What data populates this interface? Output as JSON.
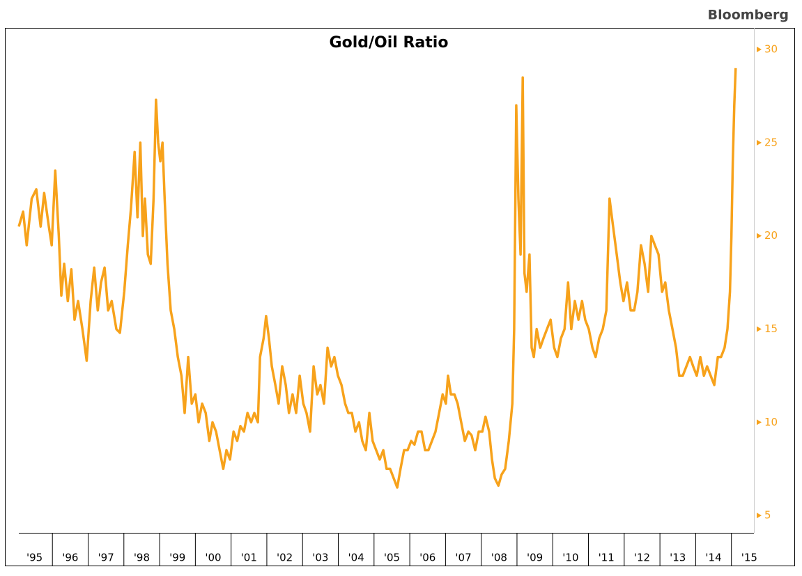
{
  "chart_data": {
    "type": "line",
    "title": "Gold/Oil Ratio",
    "source": "Bloomberg",
    "x": [
      1995.06,
      1995.18,
      1995.28,
      1995.42,
      1995.55,
      1995.67,
      1995.77,
      1995.9,
      1995.98,
      1996.08,
      1996.18,
      1996.25,
      1996.33,
      1996.43,
      1996.53,
      1996.62,
      1996.72,
      1996.84,
      1996.96,
      1997.07,
      1997.17,
      1997.27,
      1997.36,
      1997.46,
      1997.56,
      1997.66,
      1997.79,
      1997.89,
      1998.01,
      1998.11,
      1998.2,
      1998.3,
      1998.38,
      1998.46,
      1998.53,
      1998.59,
      1998.67,
      1998.75,
      1998.83,
      1998.9,
      1998.96,
      1999.02,
      1999.08,
      1999.14,
      1999.22,
      1999.31,
      1999.41,
      1999.51,
      1999.61,
      1999.7,
      1999.8,
      1999.9,
      2000.0,
      2000.09,
      2000.19,
      2000.29,
      2000.39,
      2000.48,
      2000.58,
      2000.68,
      2000.78,
      2000.87,
      2000.97,
      2001.07,
      2001.17,
      2001.26,
      2001.36,
      2001.46,
      2001.56,
      2001.65,
      2001.75,
      2001.81,
      2001.91,
      2001.98,
      2002.06,
      2002.14,
      2002.24,
      2002.33,
      2002.43,
      2002.53,
      2002.62,
      2002.72,
      2002.82,
      2002.92,
      2003.02,
      2003.11,
      2003.21,
      2003.31,
      2003.41,
      2003.5,
      2003.6,
      2003.7,
      2003.8,
      2003.89,
      2003.99,
      2004.09,
      2004.19,
      2004.28,
      2004.38,
      2004.48,
      2004.58,
      2004.67,
      2004.77,
      2004.87,
      2004.96,
      2005.06,
      2005.16,
      2005.26,
      2005.35,
      2005.45,
      2005.55,
      2005.65,
      2005.74,
      2005.84,
      2005.94,
      2006.04,
      2006.13,
      2006.23,
      2006.33,
      2006.43,
      2006.52,
      2006.62,
      2006.72,
      2006.82,
      2006.92,
      2007.01,
      2007.07,
      2007.15,
      2007.25,
      2007.34,
      2007.44,
      2007.54,
      2007.64,
      2007.73,
      2007.83,
      2007.93,
      2008.03,
      2008.12,
      2008.22,
      2008.3,
      2008.38,
      2008.48,
      2008.57,
      2008.67,
      2008.77,
      2008.87,
      2008.92,
      2008.98,
      2009.04,
      2009.1,
      2009.16,
      2009.21,
      2009.27,
      2009.35,
      2009.41,
      2009.47,
      2009.55,
      2009.65,
      2009.74,
      2009.84,
      2009.94,
      2010.04,
      2010.13,
      2010.23,
      2010.33,
      2010.43,
      2010.52,
      2010.62,
      2010.72,
      2010.82,
      2010.91,
      2011.01,
      2011.11,
      2011.2,
      2011.3,
      2011.4,
      2011.5,
      2011.59,
      2011.69,
      2011.79,
      2011.89,
      2011.98,
      2012.08,
      2012.18,
      2012.28,
      2012.37,
      2012.47,
      2012.57,
      2012.67,
      2012.76,
      2012.86,
      2012.96,
      2013.06,
      2013.15,
      2013.25,
      2013.35,
      2013.45,
      2013.54,
      2013.64,
      2013.74,
      2013.84,
      2013.93,
      2014.03,
      2014.13,
      2014.23,
      2014.32,
      2014.42,
      2014.52,
      2014.62,
      2014.71,
      2014.81,
      2014.89,
      2014.96,
      2015.0,
      2015.04,
      2015.08,
      2015.12
    ],
    "series": [
      {
        "color": "#f7a21b",
        "values": [
          20.5,
          21.3,
          19.5,
          22,
          22.5,
          20.5,
          22.3,
          20.5,
          19.5,
          23.5,
          20,
          16.8,
          18.5,
          16.5,
          18.2,
          15.5,
          16.5,
          15,
          13.3,
          16.5,
          18.3,
          16,
          17.5,
          18.3,
          16,
          16.5,
          15,
          14.8,
          17,
          19.5,
          21.5,
          24.5,
          21,
          25,
          20,
          22,
          19,
          18.5,
          22,
          27.3,
          25,
          24,
          25,
          22,
          18.5,
          16,
          15,
          13.5,
          12.5,
          10.5,
          13.5,
          11,
          11.5,
          10,
          11,
          10.5,
          9,
          10,
          9.5,
          8.5,
          7.5,
          8.5,
          8,
          9.5,
          9,
          9.8,
          9.5,
          10.5,
          10,
          10.5,
          10,
          13.5,
          14.5,
          15.7,
          14.5,
          13,
          12,
          11,
          13,
          12,
          10.5,
          11.5,
          10.5,
          12.5,
          11,
          10.5,
          9.5,
          13,
          11.5,
          12,
          11,
          14,
          13,
          13.5,
          12.5,
          12,
          11,
          10.5,
          10.5,
          9.5,
          10,
          9,
          8.5,
          10.5,
          9,
          8.5,
          8,
          8.5,
          7.5,
          7.5,
          7,
          6.5,
          7.5,
          8.5,
          8.5,
          9,
          8.8,
          9.5,
          9.5,
          8.5,
          8.5,
          9,
          9.5,
          10.5,
          11.5,
          11,
          12.5,
          11.5,
          11.5,
          11,
          10,
          9,
          9.5,
          9.3,
          8.5,
          9.5,
          9.5,
          10.3,
          9.5,
          8,
          7,
          6.6,
          7.2,
          7.5,
          9,
          11,
          15,
          27,
          22,
          19,
          28.5,
          18,
          17,
          19,
          14,
          13.5,
          15,
          14,
          14.5,
          15,
          15.5,
          14,
          13.5,
          14.5,
          15,
          17.5,
          15,
          16.5,
          15.5,
          16.5,
          15.5,
          15,
          14,
          13.5,
          14.5,
          15,
          16,
          22,
          20.5,
          19,
          17.5,
          16.5,
          17.5,
          16,
          16,
          17,
          19.5,
          18.5,
          17,
          20,
          19.5,
          19,
          17,
          17.5,
          16,
          15,
          14,
          12.5,
          12.5,
          13,
          13.5,
          13,
          12.5,
          13.5,
          12.5,
          13,
          12.5,
          12,
          13.5,
          13.5,
          14,
          15,
          17,
          20,
          24,
          27,
          29
        ]
      }
    ],
    "xlim": [
      1995.06,
      2015.63
    ],
    "xticks": [
      {
        "value": 1995,
        "label": "'95"
      },
      {
        "value": 1996,
        "label": "'96"
      },
      {
        "value": 1997,
        "label": "'97"
      },
      {
        "value": 1998,
        "label": "'98"
      },
      {
        "value": 1999,
        "label": "'99"
      },
      {
        "value": 2000,
        "label": "'00"
      },
      {
        "value": 2001,
        "label": "'01"
      },
      {
        "value": 2002,
        "label": "'02"
      },
      {
        "value": 2003,
        "label": "'03"
      },
      {
        "value": 2004,
        "label": "'04"
      },
      {
        "value": 2005,
        "label": "'05"
      },
      {
        "value": 2006,
        "label": "'06"
      },
      {
        "value": 2007,
        "label": "'07"
      },
      {
        "value": 2008,
        "label": "'08"
      },
      {
        "value": 2009,
        "label": "'09"
      },
      {
        "value": 2010,
        "label": "'10"
      },
      {
        "value": 2011,
        "label": "'11"
      },
      {
        "value": 2012,
        "label": "'12"
      },
      {
        "value": 2013,
        "label": "'13"
      },
      {
        "value": 2014,
        "label": "'14"
      },
      {
        "value": 2015,
        "label": "'15"
      }
    ],
    "ylim": [
      4.07,
      31.16
    ],
    "yticks": [
      5,
      10,
      15,
      20,
      25,
      30
    ],
    "axis_color": "#f7a21b"
  }
}
